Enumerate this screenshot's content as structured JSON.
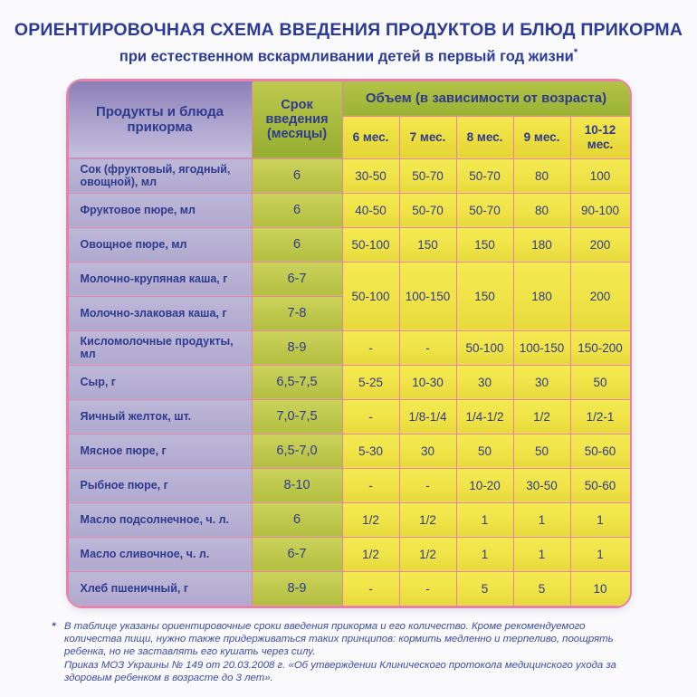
{
  "header": {
    "title": "ОРИЕНТИРОВОЧНАЯ СХЕМА ВВЕДЕНИЯ ПРОДУКТОВ И БЛЮД ПРИКОРМА",
    "subtitle": "при естественном вскармливании детей в первый год жизни",
    "footnote_marker": "*"
  },
  "table": {
    "products_header": "Продукты и блюда прикорма",
    "term_header": "Срок введения (месяцы)",
    "volume_header": "Объем (в зависимости от возраста)",
    "age_columns": [
      "6 мес.",
      "7 мес.",
      "8 мес.",
      "9 мес.",
      "10-12 мес."
    ],
    "rows": [
      {
        "product": "Сок (фруктовый, ягодный, овощной), мл",
        "term": "6",
        "values": [
          "30-50",
          "50-70",
          "50-70",
          "80",
          "100"
        ]
      },
      {
        "product": "Фруктовое пюре, мл",
        "term": "6",
        "values": [
          "40-50",
          "50-70",
          "50-70",
          "80",
          "90-100"
        ]
      },
      {
        "product": "Овощное пюре, мл",
        "term": "6",
        "values": [
          "50-100",
          "150",
          "150",
          "180",
          "200"
        ]
      },
      {
        "product": "Молочно-крупяная каша, г",
        "term": "6-7",
        "values": [
          "50-100",
          "100-150",
          "150",
          "180",
          "200"
        ]
      },
      {
        "product": "Молочно-злаковая каша, г",
        "term": "7-8",
        "values": []
      },
      {
        "product": "Кисломолочные продукты, мл",
        "term": "8-9",
        "values": [
          "-",
          "-",
          "50-100",
          "100-150",
          "150-200"
        ]
      },
      {
        "product": "Сыр, г",
        "term": "6,5-7,5",
        "values": [
          "5-25",
          "10-30",
          "30",
          "30",
          "50"
        ]
      },
      {
        "product": "Яичный желток, шт.",
        "term": "7,0-7,5",
        "values": [
          "-",
          "1/8-1/4",
          "1/4-1/2",
          "1/2",
          "1/2-1"
        ]
      },
      {
        "product": "Мясное пюре, г",
        "term": "6,5-7,0",
        "values": [
          "5-30",
          "30",
          "50",
          "50",
          "50-60"
        ]
      },
      {
        "product": "Рыбное пюре, г",
        "term": "8-10",
        "values": [
          "-",
          "-",
          "10-20",
          "30-50",
          "50-60"
        ]
      },
      {
        "product": "Масло подсолнечное, ч. л.",
        "term": "6",
        "values": [
          "1/2",
          "1/2",
          "1",
          "1",
          "1"
        ]
      },
      {
        "product": "Масло сливочное, ч. л.",
        "term": "6-7",
        "values": [
          "1/2",
          "1/2",
          "1",
          "1",
          "1"
        ]
      },
      {
        "product": "Хлеб пшеничный, г",
        "term": "8-9",
        "values": [
          "-",
          "-",
          "5",
          "5",
          "10"
        ]
      }
    ]
  },
  "footnote": {
    "marker": "*",
    "principles": "В таблице указаны ориентировочные сроки введения прикорма и его количество. Кроме рекомендуемого количества пищи, нужно также придерживаться таких принципов: кормить медленно и терпеливо, поощрять ребенка, но не заставлять его кушать через силу.",
    "decree": "Приказ МОЗ Украины № 149 от 20.03.2008 г. «Об утверждении Клинического протокола медицинского ухода за здоровым ребенком в возрасте до 3 лет»."
  },
  "colors": {
    "page_bg": "#fafafc",
    "title_text": "#2b3a96",
    "table_text": "#2e3a8e",
    "border_pink": "#e781a9",
    "purple_header": "#a79fcb",
    "purple_cell": "#b5aed2",
    "green_header": "#a4b83c",
    "green_cell": "#bfc94d",
    "yellow_cell": "#f1e74b",
    "footnote_text": "#3c4aa0"
  }
}
